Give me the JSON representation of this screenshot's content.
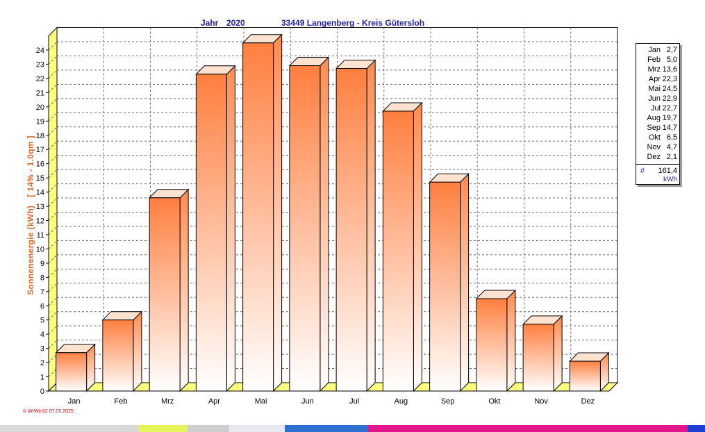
{
  "header": {
    "year_label": "Jahr",
    "year": "2020",
    "location": "33449 Langenberg - Kreis Gütersloh"
  },
  "chart_data": {
    "type": "bar",
    "title": "33449 Langenberg - Kreis Gütersloh",
    "ylabel_main": "Sonnenenergie  (kWh)",
    "ylabel_params": "[ 14% - 1.0qm ]",
    "categories": [
      "Jan",
      "Feb",
      "Mrz",
      "Apr",
      "Mai",
      "Jun",
      "Jul",
      "Aug",
      "Sep",
      "Okt",
      "Nov",
      "Dez"
    ],
    "values": [
      2.7,
      5.0,
      13.6,
      22.3,
      24.5,
      22.9,
      22.7,
      19.7,
      14.7,
      6.5,
      4.7,
      2.1
    ],
    "ylim": [
      0,
      25
    ],
    "yticks": [
      0,
      1,
      2,
      3,
      4,
      5,
      6,
      7,
      8,
      9,
      10,
      11,
      12,
      13,
      14,
      15,
      16,
      17,
      18,
      19,
      20,
      21,
      22,
      23,
      24
    ],
    "grid": true,
    "bar_color_top": "#ff7f3f",
    "bar_color_bottom": "#ffffff",
    "legend_placement": "right"
  },
  "legend": {
    "rows": [
      {
        "month": "Jan",
        "value": "2,7"
      },
      {
        "month": "Feb",
        "value": "5,0"
      },
      {
        "month": "Mrz",
        "value": "13,6"
      },
      {
        "month": "Apr",
        "value": "22,3"
      },
      {
        "month": "Mai",
        "value": "24,5"
      },
      {
        "month": "Jun",
        "value": "22,9"
      },
      {
        "month": "Jul",
        "value": "22,7"
      },
      {
        "month": "Aug",
        "value": "19,7"
      },
      {
        "month": "Sep",
        "value": "14,7"
      },
      {
        "month": "Okt",
        "value": "6,5"
      },
      {
        "month": "Nov",
        "value": "4,7"
      },
      {
        "month": "Dez",
        "value": "2,1"
      }
    ],
    "total_symbol": "#",
    "total_value": "161,4",
    "unit": "kWh"
  },
  "footer": {
    "stamp": "© WrWin32  07.05.2025"
  },
  "colors": {
    "title": "#1f1fa8",
    "ylabel": "#e26a2a",
    "left_wall": "#ffff80",
    "floor": "#ffff80"
  }
}
